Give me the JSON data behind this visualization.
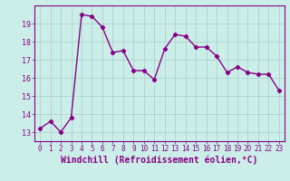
{
  "x": [
    0,
    1,
    2,
    3,
    4,
    5,
    6,
    7,
    8,
    9,
    10,
    11,
    12,
    13,
    14,
    15,
    16,
    17,
    18,
    19,
    20,
    21,
    22,
    23
  ],
  "y": [
    13.2,
    13.6,
    13.0,
    13.8,
    19.5,
    19.4,
    18.8,
    17.4,
    17.5,
    16.4,
    16.4,
    15.9,
    17.6,
    18.4,
    18.3,
    17.7,
    17.7,
    17.2,
    16.3,
    16.6,
    16.3,
    16.2,
    16.2,
    15.3
  ],
  "line_color": "#880088",
  "marker": "D",
  "markersize": 2.2,
  "linewidth": 1.0,
  "xlabel": "Windchill (Refroidissement éolien,°C)",
  "xlabel_fontsize": 7,
  "background_color": "#cceee8",
  "grid_color": "#aacccc",
  "tick_color": "#880088",
  "ylim": [
    12.5,
    20.0
  ],
  "xlim": [
    -0.5,
    23.5
  ],
  "yticks": [
    13,
    14,
    15,
    16,
    17,
    18,
    19
  ],
  "xticks": [
    0,
    1,
    2,
    3,
    4,
    5,
    6,
    7,
    8,
    9,
    10,
    11,
    12,
    13,
    14,
    15,
    16,
    17,
    18,
    19,
    20,
    21,
    22,
    23
  ],
  "tick_fontsize": 5.5
}
